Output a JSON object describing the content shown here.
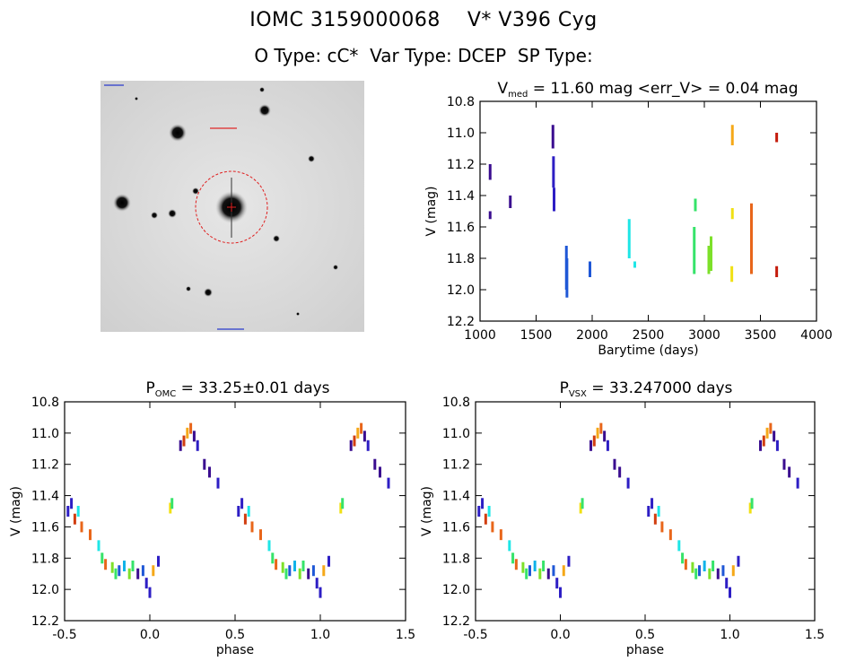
{
  "header": {
    "title_line1": "IOMC 3159000068    V* V396 Cyg",
    "title_line2": "O Type: cC*  Var Type: DCEP  SP Type:"
  },
  "colors": {
    "series_palette": [
      "#3a0d8f",
      "#2d1ec4",
      "#1f57d6",
      "#10b3e8",
      "#1ee6e6",
      "#36e36a",
      "#7de02a",
      "#f0e014",
      "#f5a818",
      "#e8661a",
      "#d13e10",
      "#c41c0c"
    ]
  },
  "chart_data": [
    {
      "type": "scatter",
      "name": "light-curve",
      "title_main": "V",
      "title_sub": "med",
      "title_rest": " = 11.60 mag <err_V> = 0.04 mag",
      "xlabel": "Barytime (days)",
      "ylabel": "V (mag)",
      "xlim": [
        1000,
        4000
      ],
      "ylim": [
        12.2,
        10.8
      ],
      "x_ticks": [
        1000,
        1500,
        2000,
        2500,
        3000,
        3500,
        4000
      ],
      "y_ticks": [
        10.8,
        11.0,
        11.2,
        11.4,
        11.6,
        11.8,
        12.0,
        12.2
      ],
      "groups": [
        {
          "x": 1090,
          "y_range": [
            11.2,
            11.3
          ],
          "color_index": 0
        },
        {
          "x": 1090,
          "y_range": [
            11.5,
            11.55
          ],
          "color_index": 0
        },
        {
          "x": 1270,
          "y_range": [
            11.4,
            11.48
          ],
          "color_index": 0
        },
        {
          "x": 1650,
          "y_range": [
            10.95,
            11.1
          ],
          "color_index": 0
        },
        {
          "x": 1655,
          "y_range": [
            11.15,
            11.35
          ],
          "color_index": 1
        },
        {
          "x": 1660,
          "y_range": [
            11.35,
            11.5
          ],
          "color_index": 1
        },
        {
          "x": 1770,
          "y_range": [
            11.72,
            12.0
          ],
          "color_index": 2
        },
        {
          "x": 1775,
          "y_range": [
            11.8,
            12.05
          ],
          "color_index": 2
        },
        {
          "x": 1980,
          "y_range": [
            11.82,
            11.92
          ],
          "color_index": 2
        },
        {
          "x": 2330,
          "y_range": [
            11.55,
            11.8
          ],
          "color_index": 4
        },
        {
          "x": 2380,
          "y_range": [
            11.82,
            11.86
          ],
          "color_index": 4
        },
        {
          "x": 2910,
          "y_range": [
            11.6,
            11.9
          ],
          "color_index": 5
        },
        {
          "x": 2920,
          "y_range": [
            11.42,
            11.5
          ],
          "color_index": 5
        },
        {
          "x": 3040,
          "y_range": [
            11.72,
            11.9
          ],
          "color_index": 6
        },
        {
          "x": 3060,
          "y_range": [
            11.66,
            11.88
          ],
          "color_index": 6
        },
        {
          "x": 3250,
          "y_range": [
            11.48,
            11.55
          ],
          "color_index": 7
        },
        {
          "x": 3245,
          "y_range": [
            11.85,
            11.95
          ],
          "color_index": 7
        },
        {
          "x": 3250,
          "y_range": [
            10.95,
            11.08
          ],
          "color_index": 8
        },
        {
          "x": 3420,
          "y_range": [
            11.45,
            11.9
          ],
          "color_index": 9
        },
        {
          "x": 3645,
          "y_range": [
            11.0,
            11.06
          ],
          "color_index": 11
        },
        {
          "x": 3645,
          "y_range": [
            11.85,
            11.92
          ],
          "color_index": 11
        }
      ]
    },
    {
      "type": "scatter",
      "name": "phased-omc",
      "title_main": "P",
      "title_sub": "OMC",
      "title_rest": " = 33.25±0.01 days",
      "xlabel": "phase",
      "ylabel": "V (mag)",
      "xlim": [
        -0.5,
        1.5
      ],
      "ylim": [
        12.2,
        10.8
      ],
      "x_ticks": [
        -0.5,
        0.0,
        0.5,
        1.0,
        1.5
      ],
      "x_tick_labels": [
        "-0.5",
        "0.0",
        "0.5",
        "1.0",
        "1.5"
      ],
      "y_ticks": [
        10.8,
        11.0,
        11.2,
        11.4,
        11.6,
        11.8,
        12.0,
        12.2
      ],
      "points": [
        [
          -0.48,
          11.5,
          1
        ],
        [
          -0.46,
          11.45,
          1
        ],
        [
          -0.44,
          11.55,
          10
        ],
        [
          -0.42,
          11.5,
          4
        ],
        [
          -0.4,
          11.6,
          9
        ],
        [
          -0.35,
          11.65,
          9
        ],
        [
          -0.3,
          11.72,
          4
        ],
        [
          -0.28,
          11.8,
          5
        ],
        [
          -0.26,
          11.84,
          9
        ],
        [
          -0.22,
          11.86,
          6
        ],
        [
          -0.2,
          11.9,
          5
        ],
        [
          -0.18,
          11.88,
          2
        ],
        [
          -0.15,
          11.85,
          3
        ],
        [
          -0.12,
          11.9,
          6
        ],
        [
          -0.1,
          11.85,
          5
        ],
        [
          -0.07,
          11.9,
          0
        ],
        [
          -0.04,
          11.88,
          2
        ],
        [
          -0.02,
          11.96,
          1
        ],
        [
          0.0,
          12.02,
          1
        ],
        [
          0.02,
          11.88,
          8
        ],
        [
          0.05,
          11.82,
          1
        ],
        [
          0.12,
          11.48,
          7
        ],
        [
          0.13,
          11.45,
          5
        ],
        [
          0.18,
          11.08,
          0
        ],
        [
          0.2,
          11.05,
          10
        ],
        [
          0.22,
          11.0,
          8
        ],
        [
          0.24,
          10.97,
          9
        ],
        [
          0.26,
          11.02,
          0
        ],
        [
          0.28,
          11.08,
          1
        ],
        [
          0.32,
          11.2,
          0
        ],
        [
          0.35,
          11.25,
          0
        ],
        [
          0.4,
          11.32,
          1
        ]
      ]
    },
    {
      "type": "scatter",
      "name": "phased-vsx",
      "title_main": "P",
      "title_sub": "VSX",
      "title_rest": " = 33.247000 days",
      "xlabel": "phase",
      "ylabel": "V (mag)",
      "xlim": [
        -0.5,
        1.5
      ],
      "ylim": [
        12.2,
        10.8
      ],
      "x_ticks": [
        -0.5,
        0.0,
        0.5,
        1.0,
        1.5
      ],
      "x_tick_labels": [
        "-0.5",
        "0.0",
        "0.5",
        "1.0",
        "1.5"
      ],
      "y_ticks": [
        10.8,
        11.0,
        11.2,
        11.4,
        11.6,
        11.8,
        12.0,
        12.2
      ],
      "points": [
        [
          -0.48,
          11.5,
          1
        ],
        [
          -0.46,
          11.45,
          1
        ],
        [
          -0.44,
          11.55,
          10
        ],
        [
          -0.42,
          11.5,
          4
        ],
        [
          -0.4,
          11.6,
          9
        ],
        [
          -0.35,
          11.65,
          9
        ],
        [
          -0.3,
          11.72,
          4
        ],
        [
          -0.28,
          11.8,
          5
        ],
        [
          -0.26,
          11.84,
          9
        ],
        [
          -0.22,
          11.86,
          6
        ],
        [
          -0.2,
          11.9,
          5
        ],
        [
          -0.18,
          11.88,
          2
        ],
        [
          -0.15,
          11.85,
          3
        ],
        [
          -0.12,
          11.9,
          6
        ],
        [
          -0.1,
          11.85,
          5
        ],
        [
          -0.07,
          11.9,
          0
        ],
        [
          -0.04,
          11.88,
          2
        ],
        [
          -0.02,
          11.96,
          1
        ],
        [
          0.0,
          12.02,
          1
        ],
        [
          0.02,
          11.88,
          8
        ],
        [
          0.05,
          11.82,
          1
        ],
        [
          0.12,
          11.48,
          7
        ],
        [
          0.13,
          11.45,
          5
        ],
        [
          0.18,
          11.08,
          0
        ],
        [
          0.2,
          11.05,
          10
        ],
        [
          0.22,
          11.0,
          8
        ],
        [
          0.24,
          10.97,
          9
        ],
        [
          0.26,
          11.02,
          0
        ],
        [
          0.28,
          11.08,
          1
        ],
        [
          0.32,
          11.2,
          0
        ],
        [
          0.35,
          11.25,
          0
        ],
        [
          0.4,
          11.32,
          1
        ]
      ]
    }
  ]
}
